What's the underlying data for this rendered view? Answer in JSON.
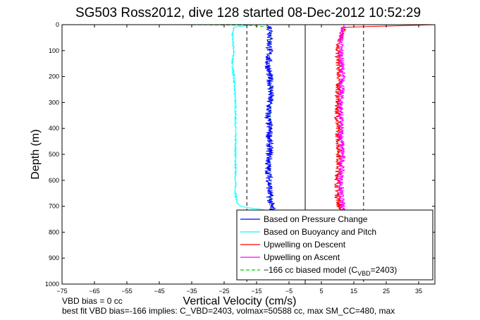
{
  "chart_data": {
    "type": "line",
    "title": "SG503 Ross2012, dive 128 started 08-Dec-2012 10:52:29",
    "xlabel": "Vertical Velocity (cm/s)",
    "ylabel": "Depth (m)",
    "xlim": [
      -75,
      40
    ],
    "ylim": [
      0,
      1000
    ],
    "y_reversed": true,
    "xticks": [
      -75,
      -65,
      -55,
      -45,
      -35,
      -25,
      -15,
      -5,
      5,
      15,
      25,
      35
    ],
    "yticks": [
      0,
      100,
      200,
      300,
      400,
      500,
      600,
      700,
      800,
      900,
      1000
    ],
    "grid": false,
    "legend_position": "bottom-right",
    "vertical_lines": [
      {
        "x": 0,
        "style": "solid"
      },
      {
        "x": -18,
        "style": "dashed"
      },
      {
        "x": 18,
        "style": "dashed"
      }
    ],
    "series": [
      {
        "name": "Based on Pressure Change",
        "color": "#0000ff",
        "style": "solid",
        "depth": [
          0,
          10,
          30,
          60,
          100,
          150,
          200,
          250,
          300,
          350,
          400,
          450,
          500,
          550,
          600,
          650,
          700,
          715
        ],
        "velocity": [
          -12,
          -11,
          -10.5,
          -11,
          -11,
          -11.5,
          -11,
          -10.5,
          -11,
          -11.5,
          -11,
          -11,
          -11,
          -11.5,
          -11,
          -11,
          -10.5,
          -10
        ]
      },
      {
        "name": "Based on Buoyancy and Pitch",
        "color": "#00ffff",
        "style": "solid",
        "depth": [
          0,
          10,
          40,
          100,
          150,
          200,
          300,
          400,
          500,
          600,
          650,
          690,
          700,
          705,
          715
        ],
        "velocity": [
          -16,
          -22,
          -22.5,
          -22,
          -22.5,
          -22,
          -21.5,
          -21.5,
          -21.5,
          -21.5,
          -21.5,
          -21,
          -20,
          -18,
          -12
        ]
      },
      {
        "name": "Upwelling on Descent",
        "color": "#ff0000",
        "style": "solid",
        "depth": [
          0,
          10,
          50,
          100,
          200,
          300,
          400,
          500,
          600,
          650,
          700,
          715
        ],
        "velocity": [
          40,
          12,
          11,
          10,
          10.5,
          10,
          10,
          10.5,
          10,
          10,
          10.5,
          11
        ]
      },
      {
        "name": "Upwelling on Ascent",
        "color": "#ff00ff",
        "style": "solid",
        "depth": [
          0,
          50,
          100,
          200,
          300,
          400,
          500,
          600,
          650,
          700,
          715
        ],
        "velocity": [
          12,
          11,
          11,
          11.5,
          11,
          11,
          11.5,
          11,
          11,
          11.5,
          12
        ]
      },
      {
        "name": "-166 cc biased model (C_VBD=2403)",
        "color": "#00cc00",
        "style": "dashed",
        "depth": [
          0,
          2,
          10,
          100,
          200,
          300,
          400,
          500,
          600,
          700,
          715
        ],
        "velocity": [
          -40,
          -18,
          -10.5,
          -11,
          -11,
          -10.5,
          -11,
          -11,
          -10.5,
          -11,
          -10
        ]
      }
    ],
    "legend_labels": [
      "Based on Pressure Change",
      "Based on Buoyancy and Pitch",
      "Upwelling on Descent",
      "Upwelling on Ascent",
      "−166 cc biased model (C"
    ],
    "legend_last_sub": "VBD",
    "legend_last_tail": "=2403)"
  },
  "footer": {
    "line1": "VBD bias = 0 cc",
    "line2": "best fit VBD bias=-166 implies: C_VBD=2403, volmax=50588 cc, max SM_CC=480, max"
  }
}
